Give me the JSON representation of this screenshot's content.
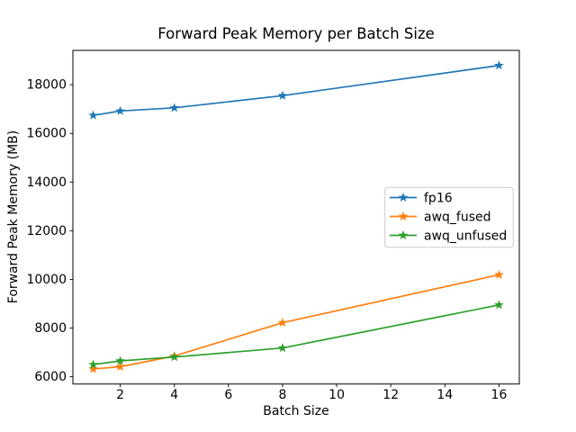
{
  "figure": {
    "title": "Forward Peak Memory per Batch Size",
    "xlabel": "Batch Size",
    "ylabel": "Forward Peak Memory (MB)",
    "background": "#ffffff",
    "spine_color": "#000000",
    "tick_color": "#000000"
  },
  "chart_data": {
    "type": "line",
    "title": "Forward Peak Memory per Batch Size",
    "xlabel": "Batch Size",
    "ylabel": "Forward Peak Memory (MB)",
    "x": [
      1,
      2,
      4,
      8,
      16
    ],
    "series": [
      {
        "name": "fp16",
        "color": "#1f77b4",
        "marker": "star",
        "values": [
          16740,
          16920,
          17050,
          17550,
          18790
        ]
      },
      {
        "name": "awq_fused",
        "color": "#ff7f0e",
        "marker": "star",
        "values": [
          6320,
          6410,
          6850,
          8220,
          10190
        ]
      },
      {
        "name": "awq_unfused",
        "color": "#2ca02c",
        "marker": "star",
        "values": [
          6500,
          6650,
          6810,
          7180,
          8950
        ]
      }
    ],
    "xticks": [
      2,
      4,
      6,
      8,
      10,
      12,
      14,
      16
    ],
    "yticks": [
      6000,
      8000,
      10000,
      12000,
      14000,
      16000,
      18000
    ],
    "xlim": [
      0.25,
      16.75
    ],
    "ylim": [
      5700,
      19410
    ],
    "grid": false,
    "legend": {
      "position": "center-right",
      "entries": [
        "fp16",
        "awq_fused",
        "awq_unfused"
      ],
      "border_color": "#cccccc",
      "fill_color": "#ffffff"
    }
  }
}
